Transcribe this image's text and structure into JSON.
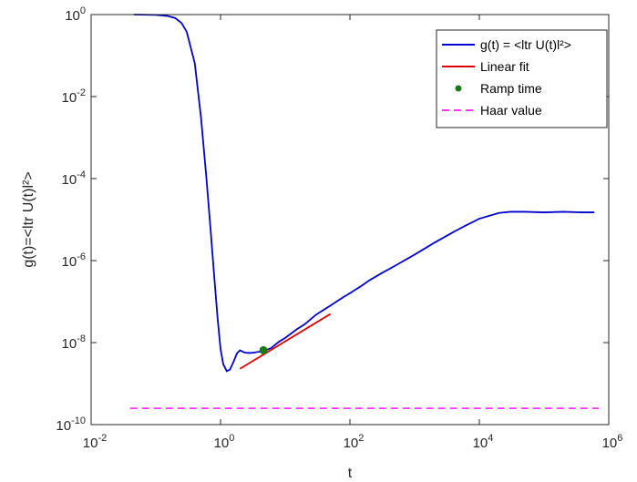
{
  "chart_data": {
    "type": "line",
    "xlabel": "t",
    "ylabel": "g(t)=<ltr U(t)l²>",
    "xscale": "log",
    "yscale": "log",
    "xlim": [
      0.01,
      1000000
    ],
    "ylim": [
      1e-10,
      1
    ],
    "grid": false,
    "legend_position": "top-right",
    "x_ticks": [
      {
        "value": 0.01,
        "base": "10",
        "exp": "-2"
      },
      {
        "value": 1,
        "base": "10",
        "exp": "0"
      },
      {
        "value": 100,
        "base": "10",
        "exp": "2"
      },
      {
        "value": 10000,
        "base": "10",
        "exp": "4"
      },
      {
        "value": 1000000,
        "base": "10",
        "exp": "6"
      }
    ],
    "y_ticks": [
      {
        "value": 1e-10,
        "base": "10",
        "exp": "-10"
      },
      {
        "value": 1e-08,
        "base": "10",
        "exp": "-8"
      },
      {
        "value": 1e-06,
        "base": "10",
        "exp": "-6"
      },
      {
        "value": 0.0001,
        "base": "10",
        "exp": "-4"
      },
      {
        "value": 0.01,
        "base": "10",
        "exp": "-2"
      },
      {
        "value": 1,
        "base": "10",
        "exp": "0"
      }
    ],
    "series": [
      {
        "name": "g(t) = <ltr U(t)l²>",
        "color": "#0000cc",
        "style": "solid",
        "x": [
          0.046,
          0.1,
          0.15,
          0.2,
          0.25,
          0.3,
          0.4,
          0.5,
          0.6,
          0.7,
          0.8,
          0.9,
          1.0,
          1.1,
          1.25,
          1.4,
          1.6,
          1.8,
          2.0,
          2.3,
          2.6,
          3.0,
          3.5,
          4.0,
          4.6,
          5.0,
          6,
          8,
          10,
          15,
          20,
          30,
          50,
          80,
          100,
          150,
          200,
          300,
          500,
          1000,
          2000,
          4000,
          6000,
          10000,
          20000,
          30000,
          50000,
          100000,
          200000,
          400000,
          600000
        ],
        "y": [
          1.0,
          0.98,
          0.93,
          0.82,
          0.62,
          0.38,
          0.065,
          0.003,
          0.00012,
          6e-06,
          4e-07,
          4e-08,
          7e-09,
          3e-09,
          2e-09,
          2.2e-09,
          3.5e-09,
          5.5e-09,
          6.5e-09,
          5.8e-09,
          5.6e-09,
          5.6e-09,
          5.8e-09,
          6e-09,
          6.2e-09,
          6.5e-09,
          7.3e-09,
          1.05e-08,
          1.3e-08,
          2.1e-08,
          2.8e-08,
          4.8e-08,
          8e-08,
          1.3e-07,
          1.6e-07,
          2.4e-07,
          3.3e-07,
          4.8e-07,
          7.5e-07,
          1.4e-06,
          2.7e-06,
          5e-06,
          7e-06,
          1.05e-05,
          1.45e-05,
          1.55e-05,
          1.55e-05,
          1.5e-05,
          1.55e-05,
          1.5e-05,
          1.5e-05
        ]
      },
      {
        "name": "Linear fit",
        "color": "#dd0000",
        "style": "solid",
        "x": [
          2.0,
          50
        ],
        "y": [
          2.3e-09,
          5e-08
        ]
      },
      {
        "name": "Ramp time",
        "color": "#1a7a1a",
        "style": "marker",
        "x": [
          4.6
        ],
        "y": [
          6.5e-09
        ]
      },
      {
        "name": "Haar value",
        "color": "#ff33ff",
        "style": "dashed",
        "x": [
          0.04,
          700000
        ],
        "y": [
          2.5e-10,
          2.5e-10
        ]
      }
    ]
  }
}
